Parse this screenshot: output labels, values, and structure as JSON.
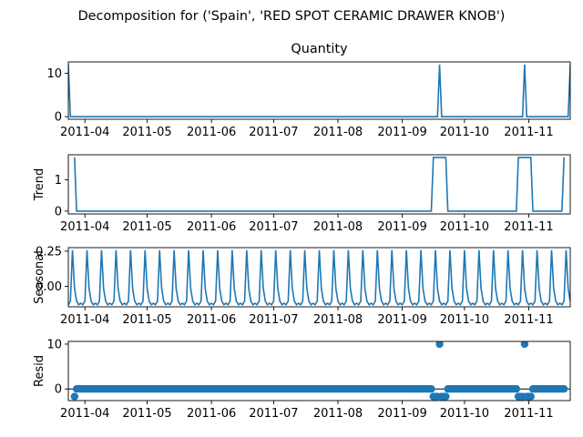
{
  "suptitle": "Decomposition for ('Spain', 'RED SPOT CERAMIC DRAWER KNOB')",
  "x_ticks": [
    "2011-04",
    "2011-05",
    "2011-06",
    "2011-07",
    "2011-08",
    "2011-09",
    "2011-10",
    "2011-11"
  ],
  "line_color": "#1f77b4",
  "chart_data": [
    {
      "type": "line",
      "title": "Quantity",
      "ylabel": "",
      "x_range": [
        "2011-03-24",
        "2011-11-21"
      ],
      "ylim": [
        -0.6,
        12.6
      ],
      "yticks": [
        0,
        10
      ],
      "series": [
        {
          "x": [
            "2011-03-24",
            "2011-03-25",
            "2011-09-18",
            "2011-09-19",
            "2011-09-20",
            "2011-10-29",
            "2011-10-30",
            "2011-10-31",
            "2011-11-20",
            "2011-11-21"
          ],
          "values": [
            12,
            0,
            0,
            12,
            0,
            0,
            12,
            0,
            0,
            12
          ]
        }
      ]
    },
    {
      "type": "line",
      "title": "",
      "ylabel": "Trend",
      "x_range": [
        "2011-03-24",
        "2011-11-21"
      ],
      "ylim": [
        -0.09,
        1.8
      ],
      "yticks": [
        0,
        1
      ],
      "series": [
        {
          "x": [
            "2011-03-27",
            "2011-03-28",
            "2011-09-15",
            "2011-09-16",
            "2011-09-22",
            "2011-09-23",
            "2011-10-26",
            "2011-10-27",
            "2011-11-02",
            "2011-11-03",
            "2011-11-17",
            "2011-11-18"
          ],
          "values": [
            1.714,
            0,
            0,
            1.714,
            1.714,
            0,
            0,
            1.714,
            1.714,
            0,
            0,
            1.714
          ]
        }
      ]
    },
    {
      "type": "line",
      "title": "",
      "ylabel": "Seasonal",
      "x_range": [
        "2011-03-24",
        "2011-11-21"
      ],
      "ylim": [
        -0.145,
        0.275
      ],
      "yticks": [
        -0.0,
        0.25
      ],
      "ytick_labels": [
        "0.00",
        "0.25"
      ],
      "period_days": 7,
      "pattern": [
        0.257,
        -0.015,
        -0.105,
        -0.13,
        -0.12,
        -0.13,
        -0.105
      ],
      "pattern_start": "2011-03-26"
    },
    {
      "type": "scatter",
      "title": "",
      "ylabel": "Resid",
      "x_range": [
        "2011-03-24",
        "2011-11-21"
      ],
      "ylim": [
        -2.6,
        10.6
      ],
      "yticks": [
        0,
        10
      ],
      "zero_line": true,
      "outliers": [
        {
          "x": "2011-03-27",
          "y": -1.7
        },
        {
          "x": "2011-09-16",
          "y": -1.7
        },
        {
          "x": "2011-09-17",
          "y": -1.7
        },
        {
          "x": "2011-09-18",
          "y": -1.7
        },
        {
          "x": "2011-09-19",
          "y": 10.0
        },
        {
          "x": "2011-09-20",
          "y": -1.7
        },
        {
          "x": "2011-09-21",
          "y": -1.7
        },
        {
          "x": "2011-09-22",
          "y": -1.7
        },
        {
          "x": "2011-10-27",
          "y": -1.7
        },
        {
          "x": "2011-10-28",
          "y": -1.7
        },
        {
          "x": "2011-10-29",
          "y": -1.7
        },
        {
          "x": "2011-10-30",
          "y": 10.0
        },
        {
          "x": "2011-10-31",
          "y": -1.7
        },
        {
          "x": "2011-11-01",
          "y": -1.7
        },
        {
          "x": "2011-11-02",
          "y": -1.7
        },
        {
          "x": "2011-11-19",
          "y": -1.7
        }
      ],
      "resid_start": "2011-03-27",
      "resid_end": "2011-11-18",
      "baseline_y": 0
    }
  ]
}
